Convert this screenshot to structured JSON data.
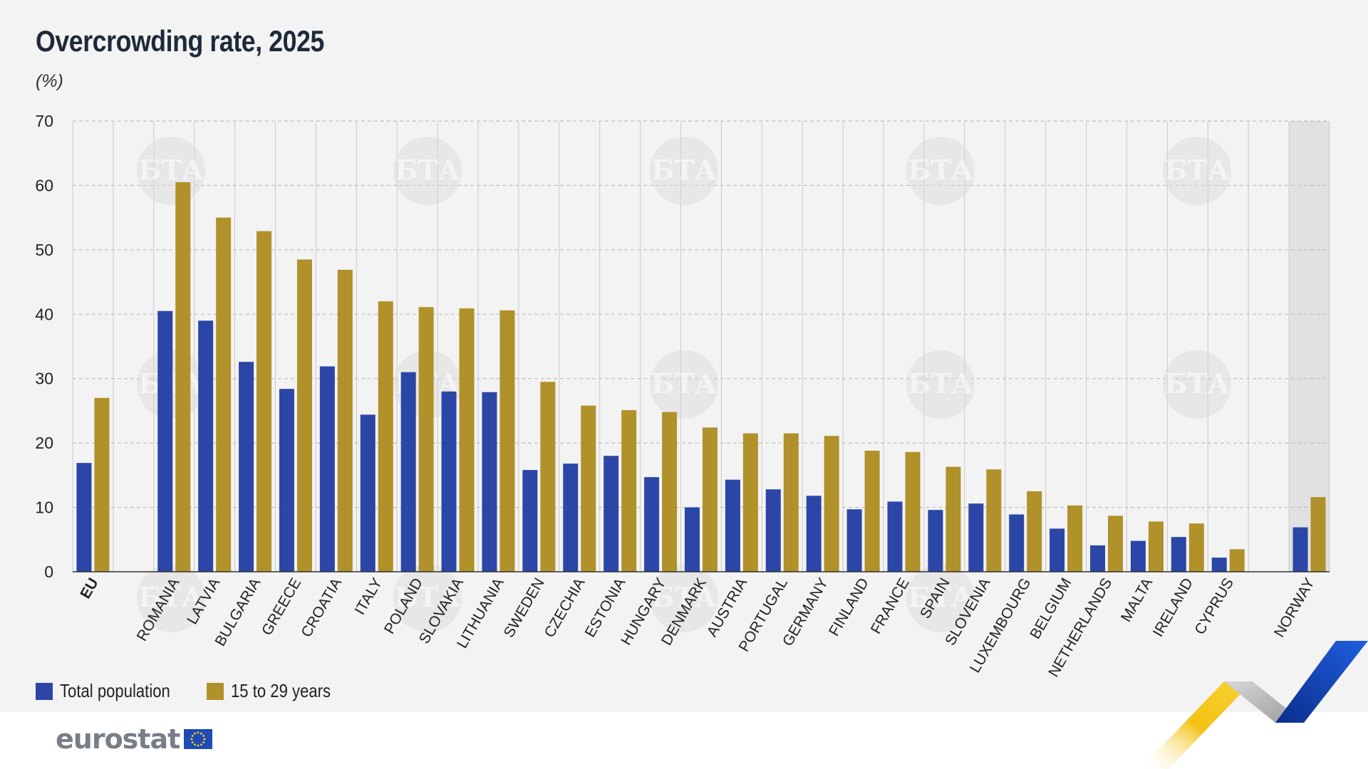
{
  "header": {
    "title": "Overcrowding rate, 2025",
    "unit": "(%)"
  },
  "legend": {
    "total_label": "Total population",
    "young_label": "15 to 29 years"
  },
  "logo": {
    "text": "eurostat"
  },
  "watermark": {
    "text": "БТА"
  },
  "colors": {
    "total": "#2b46a6",
    "young": "#b0912a",
    "background": "#f3f3f3",
    "highlight_band": "#e1e1e1",
    "grid": "#b5b5b5"
  },
  "chart_data": {
    "type": "bar",
    "title": "Overcrowding rate, 2025",
    "ylabel": "(%)",
    "ylim": [
      0,
      70
    ],
    "yticks": [
      0,
      10,
      20,
      30,
      40,
      50,
      60,
      70
    ],
    "grid": true,
    "legend_position": "bottom-left",
    "categories": [
      "EU",
      "ROMANIA",
      "LATVIA",
      "BULGARIA",
      "GREECE",
      "CROATIA",
      "ITALY",
      "POLAND",
      "SLOVAKIA",
      "LITHUANIA",
      "SWEDEN",
      "CZECHIA",
      "ESTONIA",
      "HUNGARY",
      "DENMARK",
      "AUSTRIA",
      "PORTUGAL",
      "GERMANY",
      "FINLAND",
      "FRANCE",
      "SPAIN",
      "SLOVENIA",
      "LUXEMBOURG",
      "BELGIUM",
      "NETHERLANDS",
      "MALTA",
      "IRELAND",
      "CYPRUS",
      "NORWAY"
    ],
    "series": [
      {
        "name": "Total population",
        "values": [
          16.9,
          40.5,
          39.0,
          32.6,
          28.4,
          31.9,
          24.4,
          31.0,
          28.0,
          27.9,
          15.8,
          16.8,
          18.0,
          14.7,
          10.0,
          14.3,
          12.8,
          11.8,
          9.7,
          10.9,
          9.6,
          10.6,
          8.9,
          6.7,
          4.1,
          4.8,
          5.4,
          2.2,
          6.9
        ]
      },
      {
        "name": "15 to 29 years",
        "values": [
          27.0,
          60.5,
          55.0,
          52.9,
          48.5,
          46.9,
          42.0,
          41.1,
          40.9,
          40.6,
          29.5,
          25.8,
          25.1,
          24.8,
          22.4,
          21.5,
          21.5,
          21.1,
          18.8,
          18.6,
          16.3,
          15.9,
          12.5,
          10.3,
          8.7,
          7.8,
          7.5,
          3.5,
          11.6
        ]
      }
    ]
  }
}
